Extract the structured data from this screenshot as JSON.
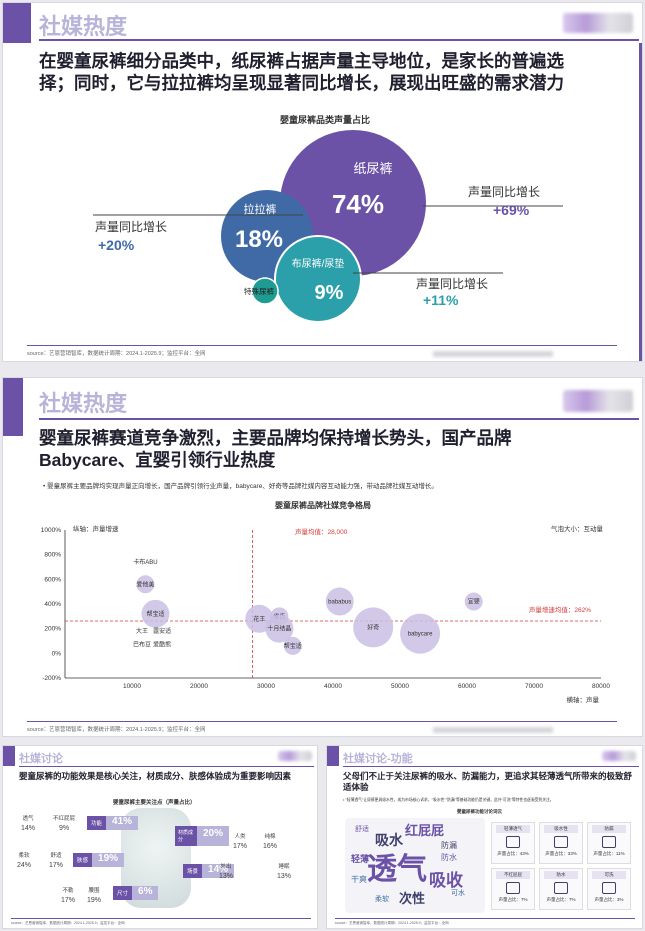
{
  "slide1": {
    "header": "社媒热度",
    "headline_line1": "在婴童尿裤细分品类中，纸尿裤占据声量主导地位，是家长的普遍选",
    "headline_line2": "择；同时，它与拉拉裤均呈现显著同比增长，展现出旺盛的需求潜力",
    "chart_title": "婴童尿裤品类声量占比",
    "source": "source：艺恩营销智库，数据统计周期：2024.1-2025.9；监控平台：全网",
    "chart_data": {
      "type": "bubble",
      "title": "婴童尿裤品类声量占比",
      "categories": [
        "纸尿裤",
        "拉拉裤",
        "布尿裤/尿垫",
        "特殊尿裤"
      ],
      "share_pct": [
        74,
        18,
        9,
        null
      ],
      "share_labels": [
        "74%",
        "18%",
        "9%",
        ""
      ],
      "yoy_label": "声量同比增长",
      "yoy_labels": [
        "+69%",
        "+20%",
        "+11%",
        ""
      ],
      "colors": [
        "#6b52a7",
        "#3f6aa5",
        "#2ba0aa",
        "#1f9c92"
      ]
    }
  },
  "slide2": {
    "header": "社媒热度",
    "headline_line1": "婴童尿裤赛道竞争激烈，主要品牌均保持增长势头，国产品牌",
    "headline_line2": "Babycare、宜婴引领行业热度",
    "bullet": "婴童尿裤主要品牌均实现声量正向增长，国产品牌引领行业声量，babycare、好奇等品牌社媒内容互动能力强，带动品牌社媒互动增长。",
    "chart_title": "婴童尿裤品牌社媒竞争格局",
    "y_axis_name": "纵轴：声量增速",
    "x_axis_name": "横轴：声量",
    "size_legend": "气泡大小：互动量",
    "avg_x_label": "声量均值：28,000",
    "avg_y_label": "声量增速均值：262%",
    "source": "source：艺恩营销智库，数据统计周期：2024.1-2025.9；监控平台：全网",
    "chart_data": {
      "type": "scatter",
      "title": "婴童尿裤品牌社媒竞争格局",
      "xlabel": "横轴：声量",
      "ylabel": "纵轴：声量增速",
      "x_ticks": [
        "10000",
        "20000",
        "30000",
        "40000",
        "50000",
        "60000",
        "70000",
        "80000"
      ],
      "y_ticks": [
        "1000%",
        "800%",
        "600%",
        "400%",
        "200%",
        "0%",
        "-200%"
      ],
      "xlim": [
        0,
        80000
      ],
      "ylim": [
        -200,
        1000
      ],
      "avg_x": 28000,
      "avg_y": 262,
      "points": [
        {
          "name": "卡布ABU",
          "x": 12000,
          "y": 740,
          "r": 0
        },
        {
          "name": "爱他美",
          "x": 12000,
          "y": 560,
          "r": 1
        },
        {
          "name": "帮宝适",
          "x": 13500,
          "y": 320,
          "r": 2
        },
        {
          "name": "大王",
          "x": 11500,
          "y": 180,
          "r": 0
        },
        {
          "name": "露安适",
          "x": 14500,
          "y": 180,
          "r": 0
        },
        {
          "name": "巴布豆",
          "x": 11500,
          "y": 70,
          "r": 0
        },
        {
          "name": "爱酷熊",
          "x": 14500,
          "y": 70,
          "r": 0
        },
        {
          "name": "花王",
          "x": 29000,
          "y": 280,
          "r": 2
        },
        {
          "name": "雀氏",
          "x": 32000,
          "y": 300,
          "r": 1
        },
        {
          "name": "十月结晶",
          "x": 32000,
          "y": 200,
          "r": 2
        },
        {
          "name": "帮宝适2",
          "x": 34000,
          "y": 60,
          "r": 1
        },
        {
          "name": "bababus",
          "x": 41000,
          "y": 420,
          "r": 2
        },
        {
          "name": "好奇",
          "x": 46000,
          "y": 210,
          "r": 3
        },
        {
          "name": "babycare",
          "x": 53000,
          "y": 160,
          "r": 3
        },
        {
          "name": "宜婴",
          "x": 61000,
          "y": 420,
          "r": 1
        }
      ],
      "point_labels": [
        "卡布ABU",
        "爱他美",
        "帮宝适",
        "大王",
        "露安适",
        "巴布豆",
        "爱酷熊",
        "花王",
        "雀氏",
        "十月结晶",
        "帮宝适",
        "bababus",
        "好奇",
        "babycare",
        "宜婴"
      ]
    }
  },
  "slide3": {
    "header": "社媒讨论",
    "headline": "婴童尿裤的功能效果是核心关注，材质成分、肤感体验成为重要影响因素",
    "chart_title": "婴童尿裤主要关注点（声量占比）",
    "items": [
      {
        "label": "功能",
        "value": "41%"
      },
      {
        "label": "材质成分",
        "value": "20%"
      },
      {
        "label": "肤感",
        "value": "19%"
      },
      {
        "label": "场景",
        "value": "14%"
      },
      {
        "label": "尺寸",
        "value": "6%"
      }
    ],
    "sub_items": [
      {
        "label": "透气",
        "value": "14%"
      },
      {
        "label": "不红屁屁",
        "value": "9%"
      },
      {
        "label": "柔软",
        "value": "24%"
      },
      {
        "label": "舒适",
        "value": "17%"
      },
      {
        "label": "人类",
        "value": "17%"
      },
      {
        "label": "纯棉",
        "value": "16%"
      },
      {
        "label": "外出",
        "value": "13%"
      },
      {
        "label": "睡眠",
        "value": "13%"
      },
      {
        "label": "不勒",
        "value": "17%"
      },
      {
        "label": "腰围",
        "value": "19%"
      }
    ],
    "source": "source：艺恩营销智库，数据统计周期：2024.1-2025.9；监控平台：全网"
  },
  "slide4": {
    "header": "社媒讨论-功能",
    "headline": "父母们不止于关注尿裤的吸水、防漏能力，更追求其轻薄透气所带来的极致舒适体验",
    "bullet": "\"轻薄透气\"让尿裤更具吸水性，成为市场核心诉求，\"吸水性\"\"防漏\"等基础功能仍是关键，此外\"可洗\"等特性也逐渐受到关注。",
    "chart_title": "婴童尿裤功能讨论词云",
    "cloud_words": [
      "透气",
      "吸收",
      "吸水",
      "红屁屁",
      "轻薄",
      "干爽",
      "防漏",
      "次性",
      "防水",
      "柔软",
      "可水",
      "舒适"
    ],
    "cards": [
      {
        "label": "轻薄透气",
        "value": "声量占比：43%"
      },
      {
        "label": "吸水性",
        "value": "声量占比：33%"
      },
      {
        "label": "防漏",
        "value": "声量占比：11%"
      },
      {
        "label": "不红屁屁",
        "value": "声量占比：7%"
      },
      {
        "label": "防水",
        "value": "声量占比：7%"
      },
      {
        "label": "可洗",
        "value": "声量占比：3%"
      }
    ],
    "source": "source：艺恩营销智库，数据统计周期：2024.1-2025.9；监控平台：全网"
  },
  "colors": {
    "purple": "#6b52a7",
    "blue": "#3f6aa5",
    "teal": "#2ba0aa",
    "red": "#d33b3b",
    "header_text": "#b8b3d8"
  }
}
